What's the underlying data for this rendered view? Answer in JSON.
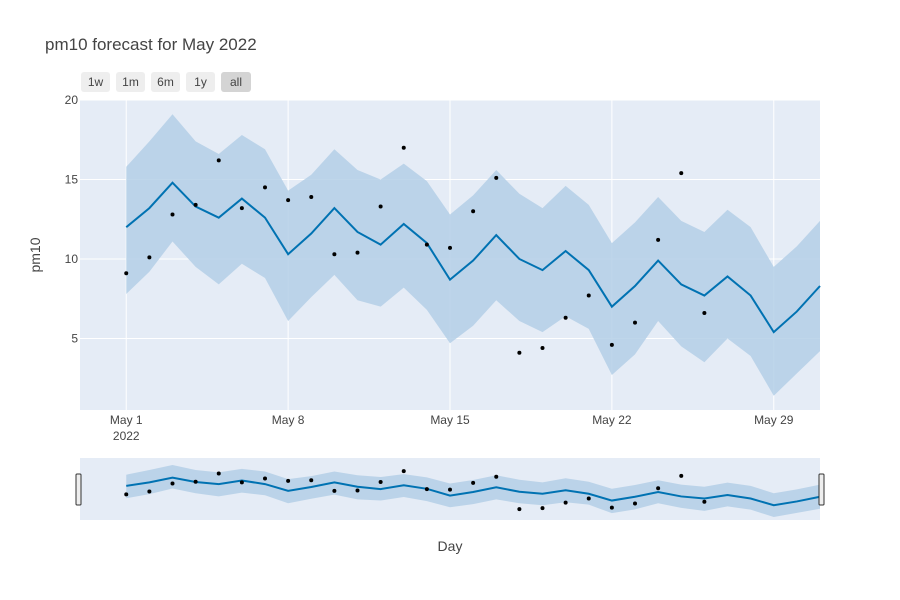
{
  "colors": {
    "plot_bg": "#e5ecf6",
    "band": "#b4cfe6",
    "line": "#0072B2",
    "points": "#000000",
    "grid": "#ffffff",
    "text": "#444444"
  },
  "range_selector": {
    "buttons": [
      {
        "label": "1w",
        "active": false
      },
      {
        "label": "1m",
        "active": false
      },
      {
        "label": "6m",
        "active": false
      },
      {
        "label": "1y",
        "active": false
      },
      {
        "label": "all",
        "active": true
      }
    ]
  },
  "chart_data": {
    "type": "line",
    "title": "pm10 forecast for May 2022",
    "xlabel": "Day",
    "ylabel": "pm10",
    "x_start": "2022-05-01",
    "xlim": [
      "2022-04-29",
      "2022-05-31"
    ],
    "ylim": [
      0.5,
      20
    ],
    "y_ticks": [
      5,
      10,
      15,
      20
    ],
    "x_ticks": [
      {
        "date": "2022-05-01",
        "label": "May 1",
        "sublabel": "2022"
      },
      {
        "date": "2022-05-08",
        "label": "May 8",
        "sublabel": ""
      },
      {
        "date": "2022-05-15",
        "label": "May 15",
        "sublabel": ""
      },
      {
        "date": "2022-05-22",
        "label": "May 22",
        "sublabel": ""
      },
      {
        "date": "2022-05-29",
        "label": "May 29",
        "sublabel": ""
      }
    ],
    "grid": true,
    "rangeslider": true,
    "series": [
      {
        "name": "",
        "type": "line",
        "values": [
          12.0,
          13.2,
          14.8,
          13.3,
          12.6,
          13.8,
          12.6,
          10.3,
          11.6,
          13.2,
          11.7,
          10.9,
          12.2,
          11.0,
          8.7,
          9.9,
          11.5,
          10.0,
          9.3,
          10.5,
          9.3,
          7.0,
          8.3,
          9.9,
          8.4,
          7.7,
          8.9,
          7.7,
          5.4,
          6.7,
          8.3
        ]
      },
      {
        "name": "",
        "type": "band_upper",
        "values": [
          15.8,
          17.4,
          19.1,
          17.4,
          16.6,
          17.8,
          16.9,
          14.3,
          15.3,
          16.9,
          15.6,
          15.0,
          16.0,
          14.9,
          12.8,
          14.0,
          15.6,
          14.1,
          13.2,
          14.6,
          13.4,
          11.0,
          12.3,
          13.9,
          12.4,
          11.7,
          13.1,
          12.0,
          9.5,
          10.8,
          12.4
        ]
      },
      {
        "name": "",
        "type": "band_lower",
        "values": [
          7.8,
          9.2,
          11.1,
          9.5,
          8.4,
          9.7,
          8.8,
          6.1,
          7.6,
          9.0,
          7.4,
          7.0,
          8.2,
          6.8,
          4.7,
          5.8,
          7.4,
          6.1,
          5.4,
          6.4,
          5.6,
          2.7,
          4.0,
          6.1,
          4.5,
          3.5,
          5.0,
          3.9,
          1.4,
          2.8,
          4.2
        ]
      },
      {
        "name": "",
        "type": "observed_points",
        "x_days": [
          1,
          2,
          3,
          4,
          5,
          6,
          7,
          8,
          9,
          10,
          11,
          12,
          13,
          14,
          15,
          16,
          17,
          18,
          19,
          20,
          21,
          22,
          23,
          24,
          25,
          26
        ],
        "values": [
          9.1,
          10.1,
          12.8,
          13.4,
          16.2,
          13.2,
          14.5,
          13.7,
          13.9,
          10.3,
          10.4,
          13.3,
          17.0,
          10.9,
          10.7,
          13.0,
          15.1,
          4.1,
          4.4,
          6.3,
          7.7,
          4.6,
          6.0,
          11.2,
          15.4,
          6.6
        ]
      }
    ]
  }
}
